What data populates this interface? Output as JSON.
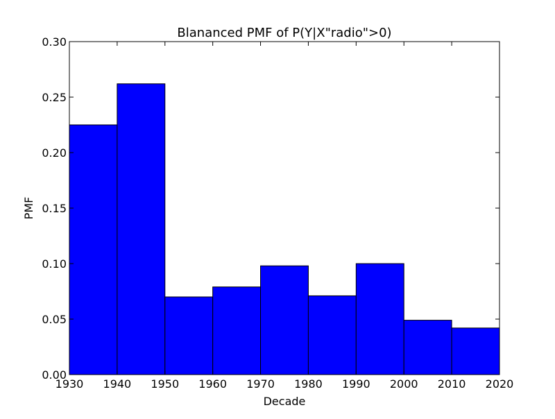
{
  "chart_data": {
    "type": "bar",
    "title": "Blananced PMF of P(Y|X\"radio\">0)",
    "xlabel": "Decade",
    "ylabel": "PMF",
    "bin_edges": [
      1930,
      1940,
      1950,
      1960,
      1970,
      1980,
      1990,
      2000,
      2010,
      2020
    ],
    "values": [
      0.225,
      0.262,
      0.07,
      0.079,
      0.098,
      0.071,
      0.1,
      0.049,
      0.042
    ],
    "xlim": [
      1930,
      2020
    ],
    "ylim": [
      0.0,
      0.3
    ],
    "x_ticks": [
      1930,
      1940,
      1950,
      1960,
      1970,
      1980,
      1990,
      2000,
      2010,
      2020
    ],
    "y_ticks": [
      0.0,
      0.05,
      0.1,
      0.15,
      0.2,
      0.25,
      0.3
    ],
    "x_tick_labels": [
      "1930",
      "1940",
      "1950",
      "1960",
      "1970",
      "1980",
      "1990",
      "2000",
      "2010",
      "2020"
    ],
    "y_tick_labels": [
      "0.00",
      "0.05",
      "0.10",
      "0.15",
      "0.20",
      "0.25",
      "0.30"
    ],
    "bar_color": "#0000ff",
    "edge_color": "#000000",
    "grid": false,
    "legend": "none"
  }
}
